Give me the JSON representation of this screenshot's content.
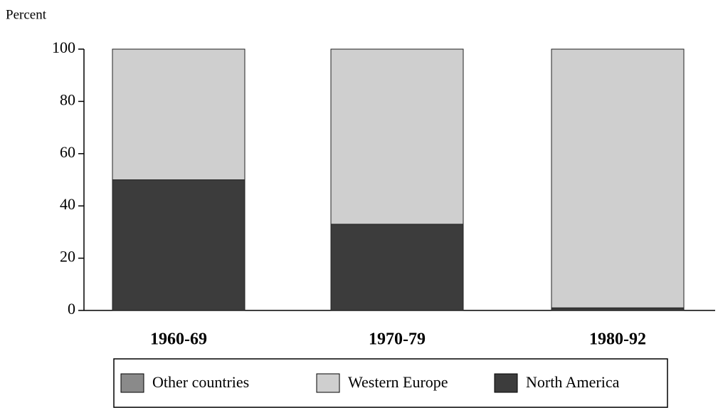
{
  "chart_data": {
    "type": "bar",
    "stacked": true,
    "y_label": "Percent",
    "categories": [
      "1960-69",
      "1970-79",
      "1980-92"
    ],
    "series": [
      {
        "name": "Other countries",
        "color": "#8a8a8a",
        "values": [
          0,
          0,
          0
        ]
      },
      {
        "name": "Western Europe",
        "color": "#cfcfcf",
        "values": [
          50,
          67,
          99
        ]
      },
      {
        "name": "North America",
        "color": "#3c3c3c",
        "values": [
          50,
          33,
          1
        ]
      }
    ],
    "ylim": [
      0,
      100
    ],
    "yticks": [
      0,
      20,
      40,
      60,
      80,
      100
    ],
    "grid": false
  }
}
